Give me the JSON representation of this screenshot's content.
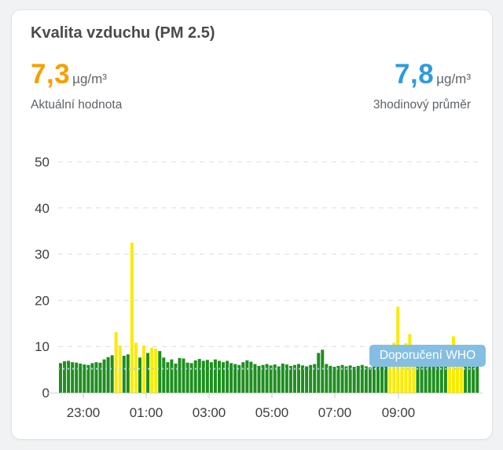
{
  "card": {
    "title": "Kvalita vzduchu (PM 2.5)"
  },
  "metrics": {
    "current": {
      "value": "7,3",
      "unit": "µg/m³",
      "label": "Aktuální hodnota",
      "color": "#F5A000"
    },
    "average": {
      "value": "7,8",
      "unit": "µg/m³",
      "label": "3hodinový průměr",
      "color": "#2E9BDB"
    }
  },
  "chart_data": {
    "type": "bar",
    "title": "",
    "xlabel": "",
    "ylabel": "",
    "unit": "µg/m³",
    "ylim": [
      0,
      50
    ],
    "yticks": [
      0,
      10,
      20,
      30,
      40,
      50
    ],
    "xticks": [
      "23:00",
      "01:00",
      "03:00",
      "05:00",
      "07:00",
      "09:00"
    ],
    "grid": "horizontal dashed gridlines, light gray",
    "legend_position": "none",
    "who_guideline": {
      "value": 5,
      "label": "Doporučení WHO",
      "line_style": "dotted",
      "line_color": "#A9D4EC",
      "tooltip_bg": "#85BEE3",
      "tooltip_text_color": "#ffffff"
    },
    "palette": {
      "g": "#1F8E1F",
      "y": "#FAEA00"
    },
    "bar_colors": "ggggggggggggggyyggyygygyyggggggggggggggggggggggggggggggggggggggggggggggggggggggggggyyyyyyyggggggggyyyygggg",
    "values": [
      6.4,
      6.8,
      6.9,
      6.6,
      6.5,
      6.3,
      6.1,
      6.0,
      6.4,
      6.6,
      6.5,
      7.2,
      7.7,
      8.1,
      13.1,
      10.2,
      8.0,
      8.3,
      32.5,
      10.8,
      7.6,
      10.2,
      8.6,
      9.7,
      9.5,
      9.0,
      7.6,
      6.6,
      7.2,
      6.3,
      7.5,
      7.4,
      6.5,
      6.4,
      7.0,
      7.3,
      6.9,
      7.1,
      6.6,
      7.2,
      6.9,
      6.6,
      6.9,
      6.4,
      6.2,
      6.0,
      6.6,
      7.0,
      6.7,
      6.2,
      5.8,
      6.0,
      6.2,
      5.9,
      6.1,
      5.7,
      6.3,
      6.1,
      5.8,
      6.0,
      6.2,
      5.9,
      5.7,
      6.0,
      6.2,
      8.6,
      9.3,
      6.2,
      5.8,
      5.6,
      5.8,
      6.0,
      5.7,
      5.9,
      5.6,
      5.8,
      6.0,
      5.7,
      5.5,
      5.8,
      5.6,
      5.9,
      5.7,
      5.6,
      10.8,
      18.6,
      5.7,
      10.7,
      12.7,
      5.6,
      5.8,
      5.7,
      5.9,
      5.6,
      5.8,
      6.0,
      5.7,
      5.9,
      5.8,
      12.2,
      6.0,
      5.6,
      7.9,
      7.0,
      6.4,
      6.2
    ]
  }
}
